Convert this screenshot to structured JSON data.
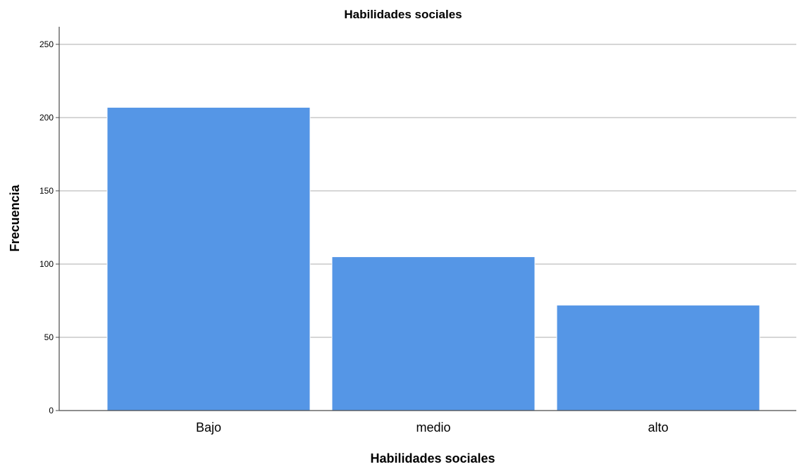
{
  "chart_data": {
    "type": "bar",
    "title": "Habilidades sociales",
    "xlabel": "Habilidades sociales",
    "ylabel": "Frecuencia",
    "categories": [
      "Bajo",
      "medio",
      "alto"
    ],
    "x_tick_labels": [
      "Bajo",
      "medio",
      "alto"
    ],
    "values": [
      207,
      105,
      72
    ],
    "ylim": [
      0,
      262
    ],
    "y_ticks": [
      0,
      50,
      100,
      150,
      200,
      250
    ],
    "y_tick_labels": [
      "0",
      "50",
      "100",
      "150",
      "200",
      "250"
    ],
    "grid": true,
    "legend": "none",
    "bar_color": "#5596e6"
  }
}
